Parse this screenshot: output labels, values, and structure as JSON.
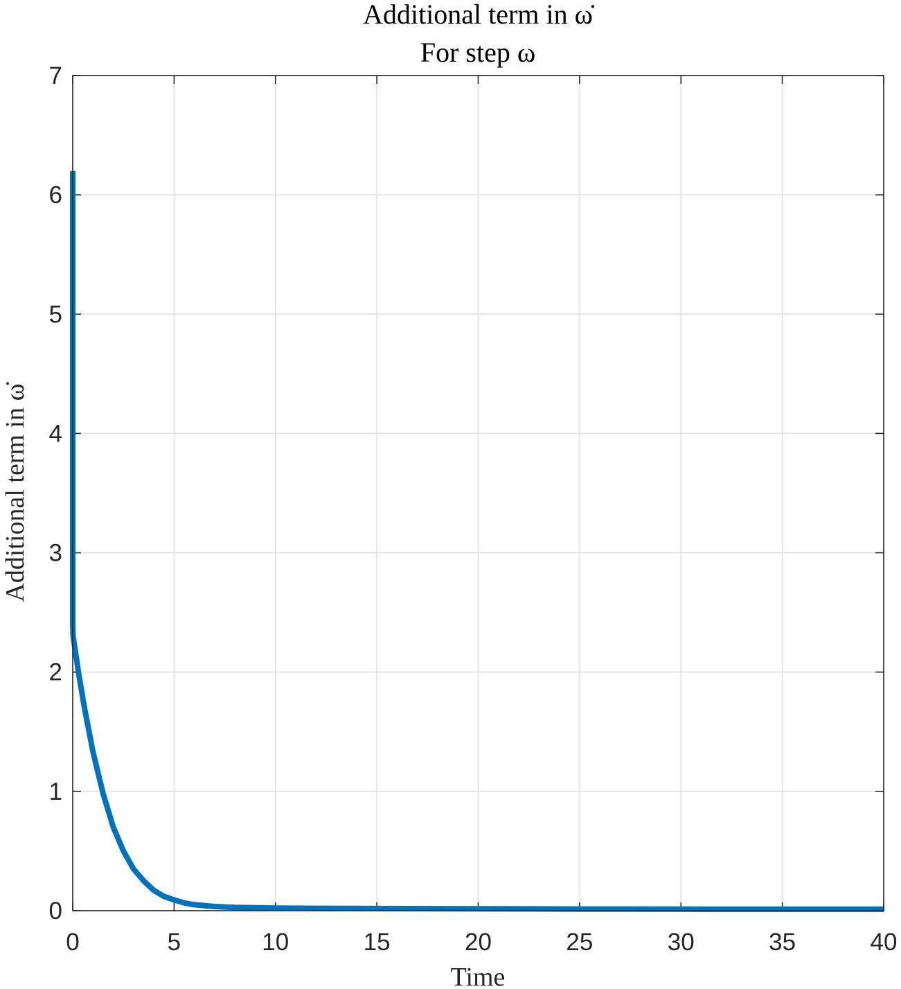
{
  "chart_data": {
    "type": "line",
    "title": "Additional term in ω̇",
    "subtitle": "For step ω",
    "xlabel": "Time",
    "ylabel": "Additional term in ω̇",
    "xlim": [
      0,
      40
    ],
    "ylim": [
      0,
      7
    ],
    "xticks": [
      0,
      5,
      10,
      15,
      20,
      25,
      30,
      35,
      40
    ],
    "yticks": [
      0,
      1,
      2,
      3,
      4,
      5,
      6,
      7
    ],
    "grid": true,
    "series": [
      {
        "color": "#0072BD",
        "x": [
          0,
          0,
          0.02,
          0.3,
          0.6,
          1.0,
          1.5,
          2.0,
          2.5,
          3.0,
          3.5,
          4.0,
          4.5,
          5.0,
          5.5,
          6.0,
          7.0,
          8.0,
          9.0,
          10.0,
          12.0,
          15.0,
          20.0,
          25.0,
          30.0,
          35.0,
          40.0
        ],
        "y": [
          6.2,
          2.4,
          2.3,
          1.98,
          1.68,
          1.33,
          0.98,
          0.7,
          0.5,
          0.35,
          0.25,
          0.17,
          0.12,
          0.09,
          0.065,
          0.05,
          0.035,
          0.028,
          0.025,
          0.022,
          0.02,
          0.018,
          0.016,
          0.014,
          0.013,
          0.012,
          0.012
        ]
      }
    ]
  }
}
